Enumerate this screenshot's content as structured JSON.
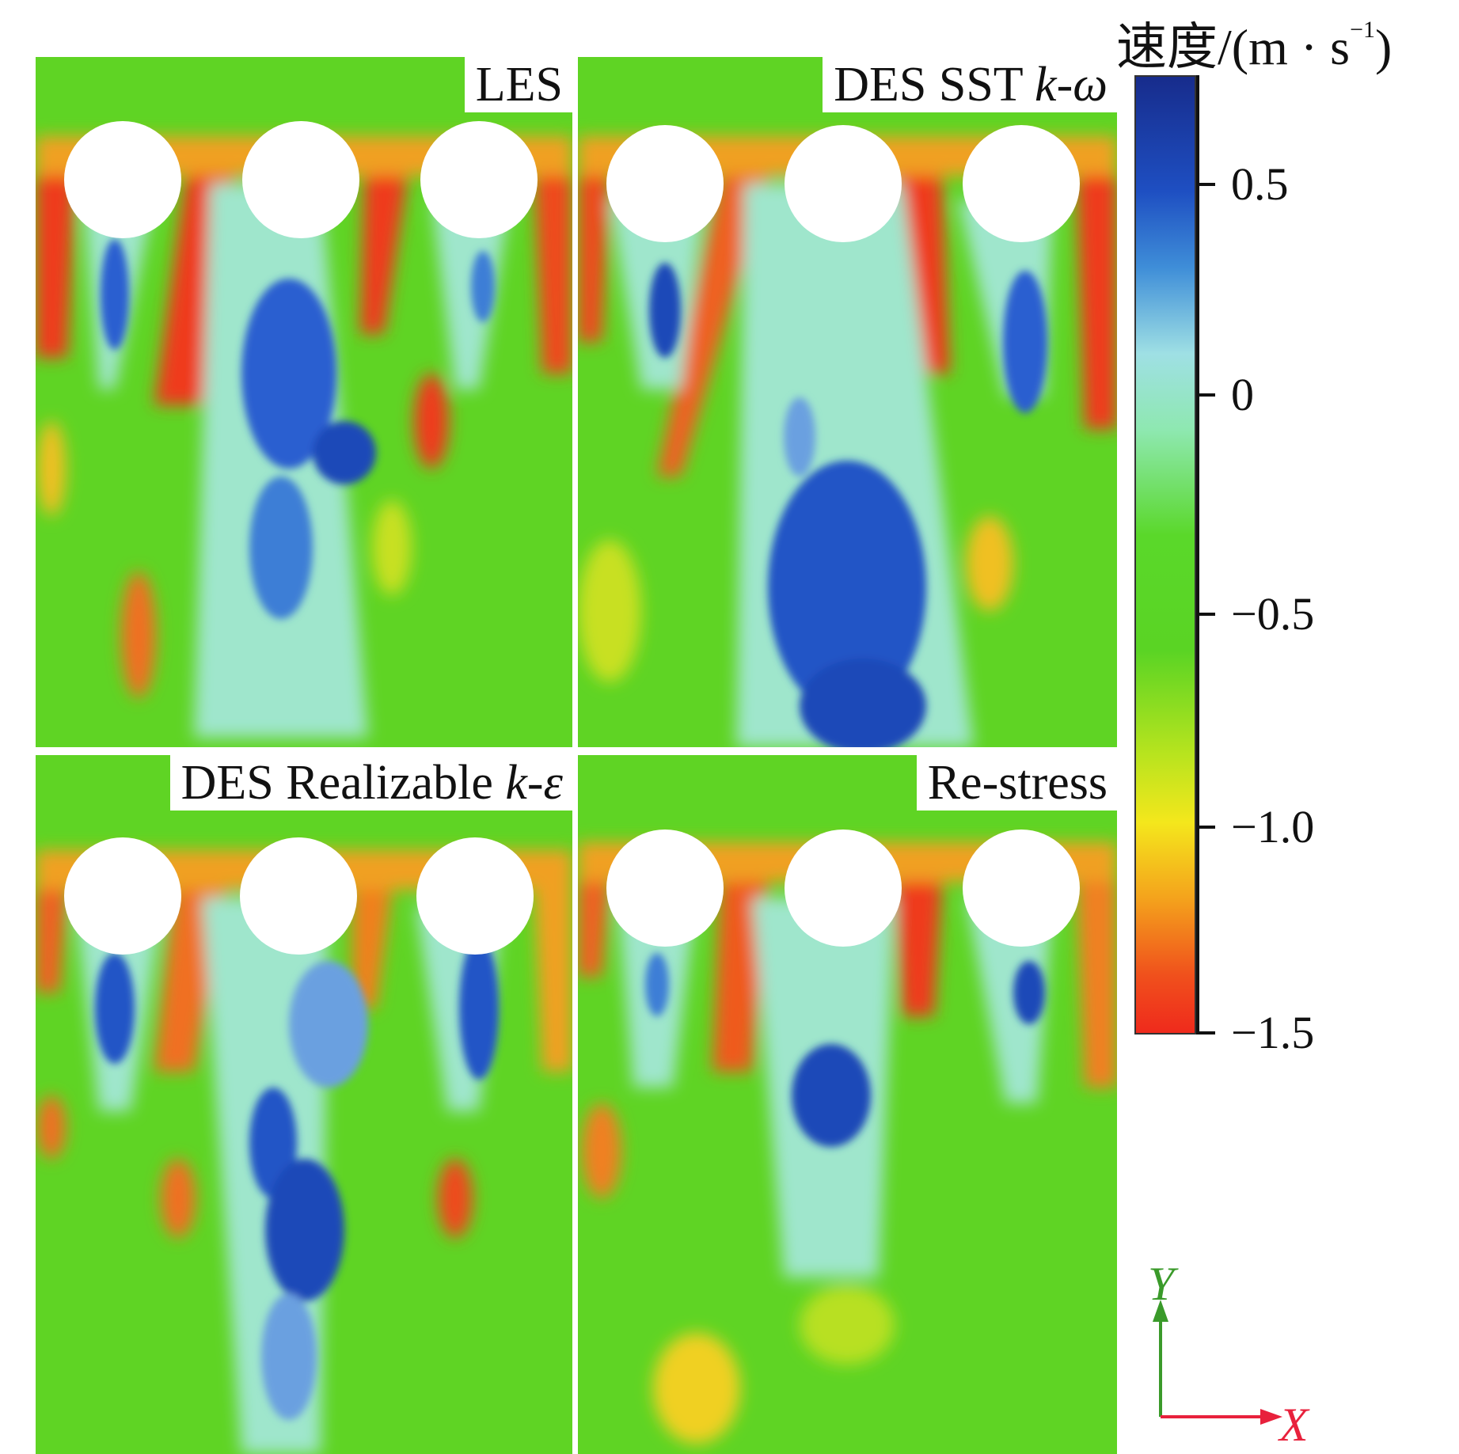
{
  "panels": [
    {
      "id": "p1",
      "label": "LES",
      "label_italic": ""
    },
    {
      "id": "p2",
      "label": "DES SST ",
      "label_italic": "k-ω"
    },
    {
      "id": "p3",
      "label": "DES Realizable ",
      "label_italic": "k-ε"
    },
    {
      "id": "p4",
      "label": "Re-stress",
      "label_italic": ""
    }
  ],
  "colorbar": {
    "title_main": "速度/(m · s",
    "title_sup": "−1",
    "title_end": ")",
    "ticks": [
      {
        "label": "0.5",
        "value": 0.5
      },
      {
        "label": "0",
        "value": 0
      },
      {
        "label": "−0.5",
        "value": -0.5
      },
      {
        "label": "−1.0",
        "value": -1.0
      },
      {
        "label": "−1.5",
        "value": -1.5
      }
    ],
    "colors": {
      "high": "#172c8c",
      "mid": "#5ad424",
      "low": "#ef2a1c"
    }
  },
  "axes": {
    "x_label": "X",
    "y_label": "Y",
    "x_color": "#e8213c",
    "y_color": "#3a9a2a"
  }
}
